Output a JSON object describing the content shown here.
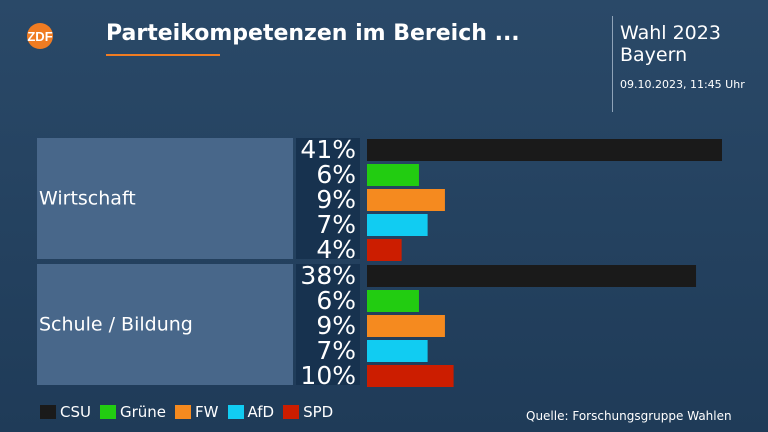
{
  "header": {
    "logo_text": "ZDF",
    "title": "Parteikompetenzen im Bereich ...",
    "election_line1": "Wahl 2023",
    "election_line2": "Bayern",
    "timestamp": "09.10.2023, 11:45 Uhr"
  },
  "footer": {
    "source": "Quelle: Forschungsgruppe Wahlen"
  },
  "chart_data": {
    "type": "bar",
    "orientation": "horizontal",
    "value_unit": "%",
    "xlim": [
      0,
      41
    ],
    "series": [
      {
        "name": "CSU",
        "color": "#1a1a1a"
      },
      {
        "name": "Grüne",
        "color": "#22cc11"
      },
      {
        "name": "FW",
        "color": "#f58a1f"
      },
      {
        "name": "AfD",
        "color": "#11ccf2"
      },
      {
        "name": "SPD",
        "color": "#cc1d00"
      }
    ],
    "groups": [
      {
        "label": "Wirtschaft",
        "values": [
          41,
          6,
          9,
          7,
          4
        ]
      },
      {
        "label": "Schule / Bildung",
        "values": [
          38,
          6,
          9,
          7,
          10
        ]
      }
    ]
  }
}
